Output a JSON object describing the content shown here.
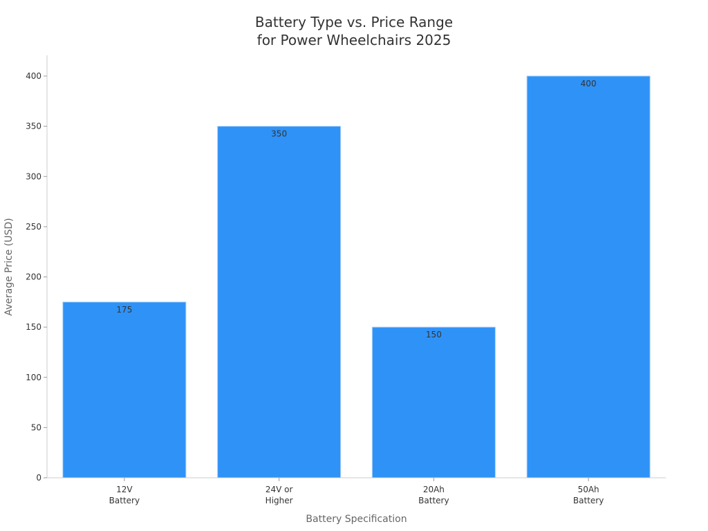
{
  "chart_data": {
    "type": "bar",
    "title_line1": "Battery Type vs. Price Range",
    "title_line2": "for Power Wheelchairs 2025",
    "xlabel": "Battery Specification",
    "ylabel": "Average Price (USD)",
    "categories": [
      [
        "12V",
        "Battery"
      ],
      [
        "24V or",
        "Higher"
      ],
      [
        "20Ah",
        "Battery"
      ],
      [
        "50Ah",
        "Battery"
      ]
    ],
    "values": [
      175,
      350,
      150,
      400
    ],
    "data_labels": [
      "175",
      "350",
      "150",
      "400"
    ],
    "ylim": [
      0,
      420
    ],
    "yticks": [
      0,
      50,
      100,
      150,
      200,
      250,
      300,
      350,
      400
    ],
    "grid": false,
    "bar_color": "#2f92f7",
    "bar_edge_color": "#a9d0f9",
    "axis_color": "#cccccc",
    "text_color": "#333333",
    "label_color": "#666666"
  }
}
